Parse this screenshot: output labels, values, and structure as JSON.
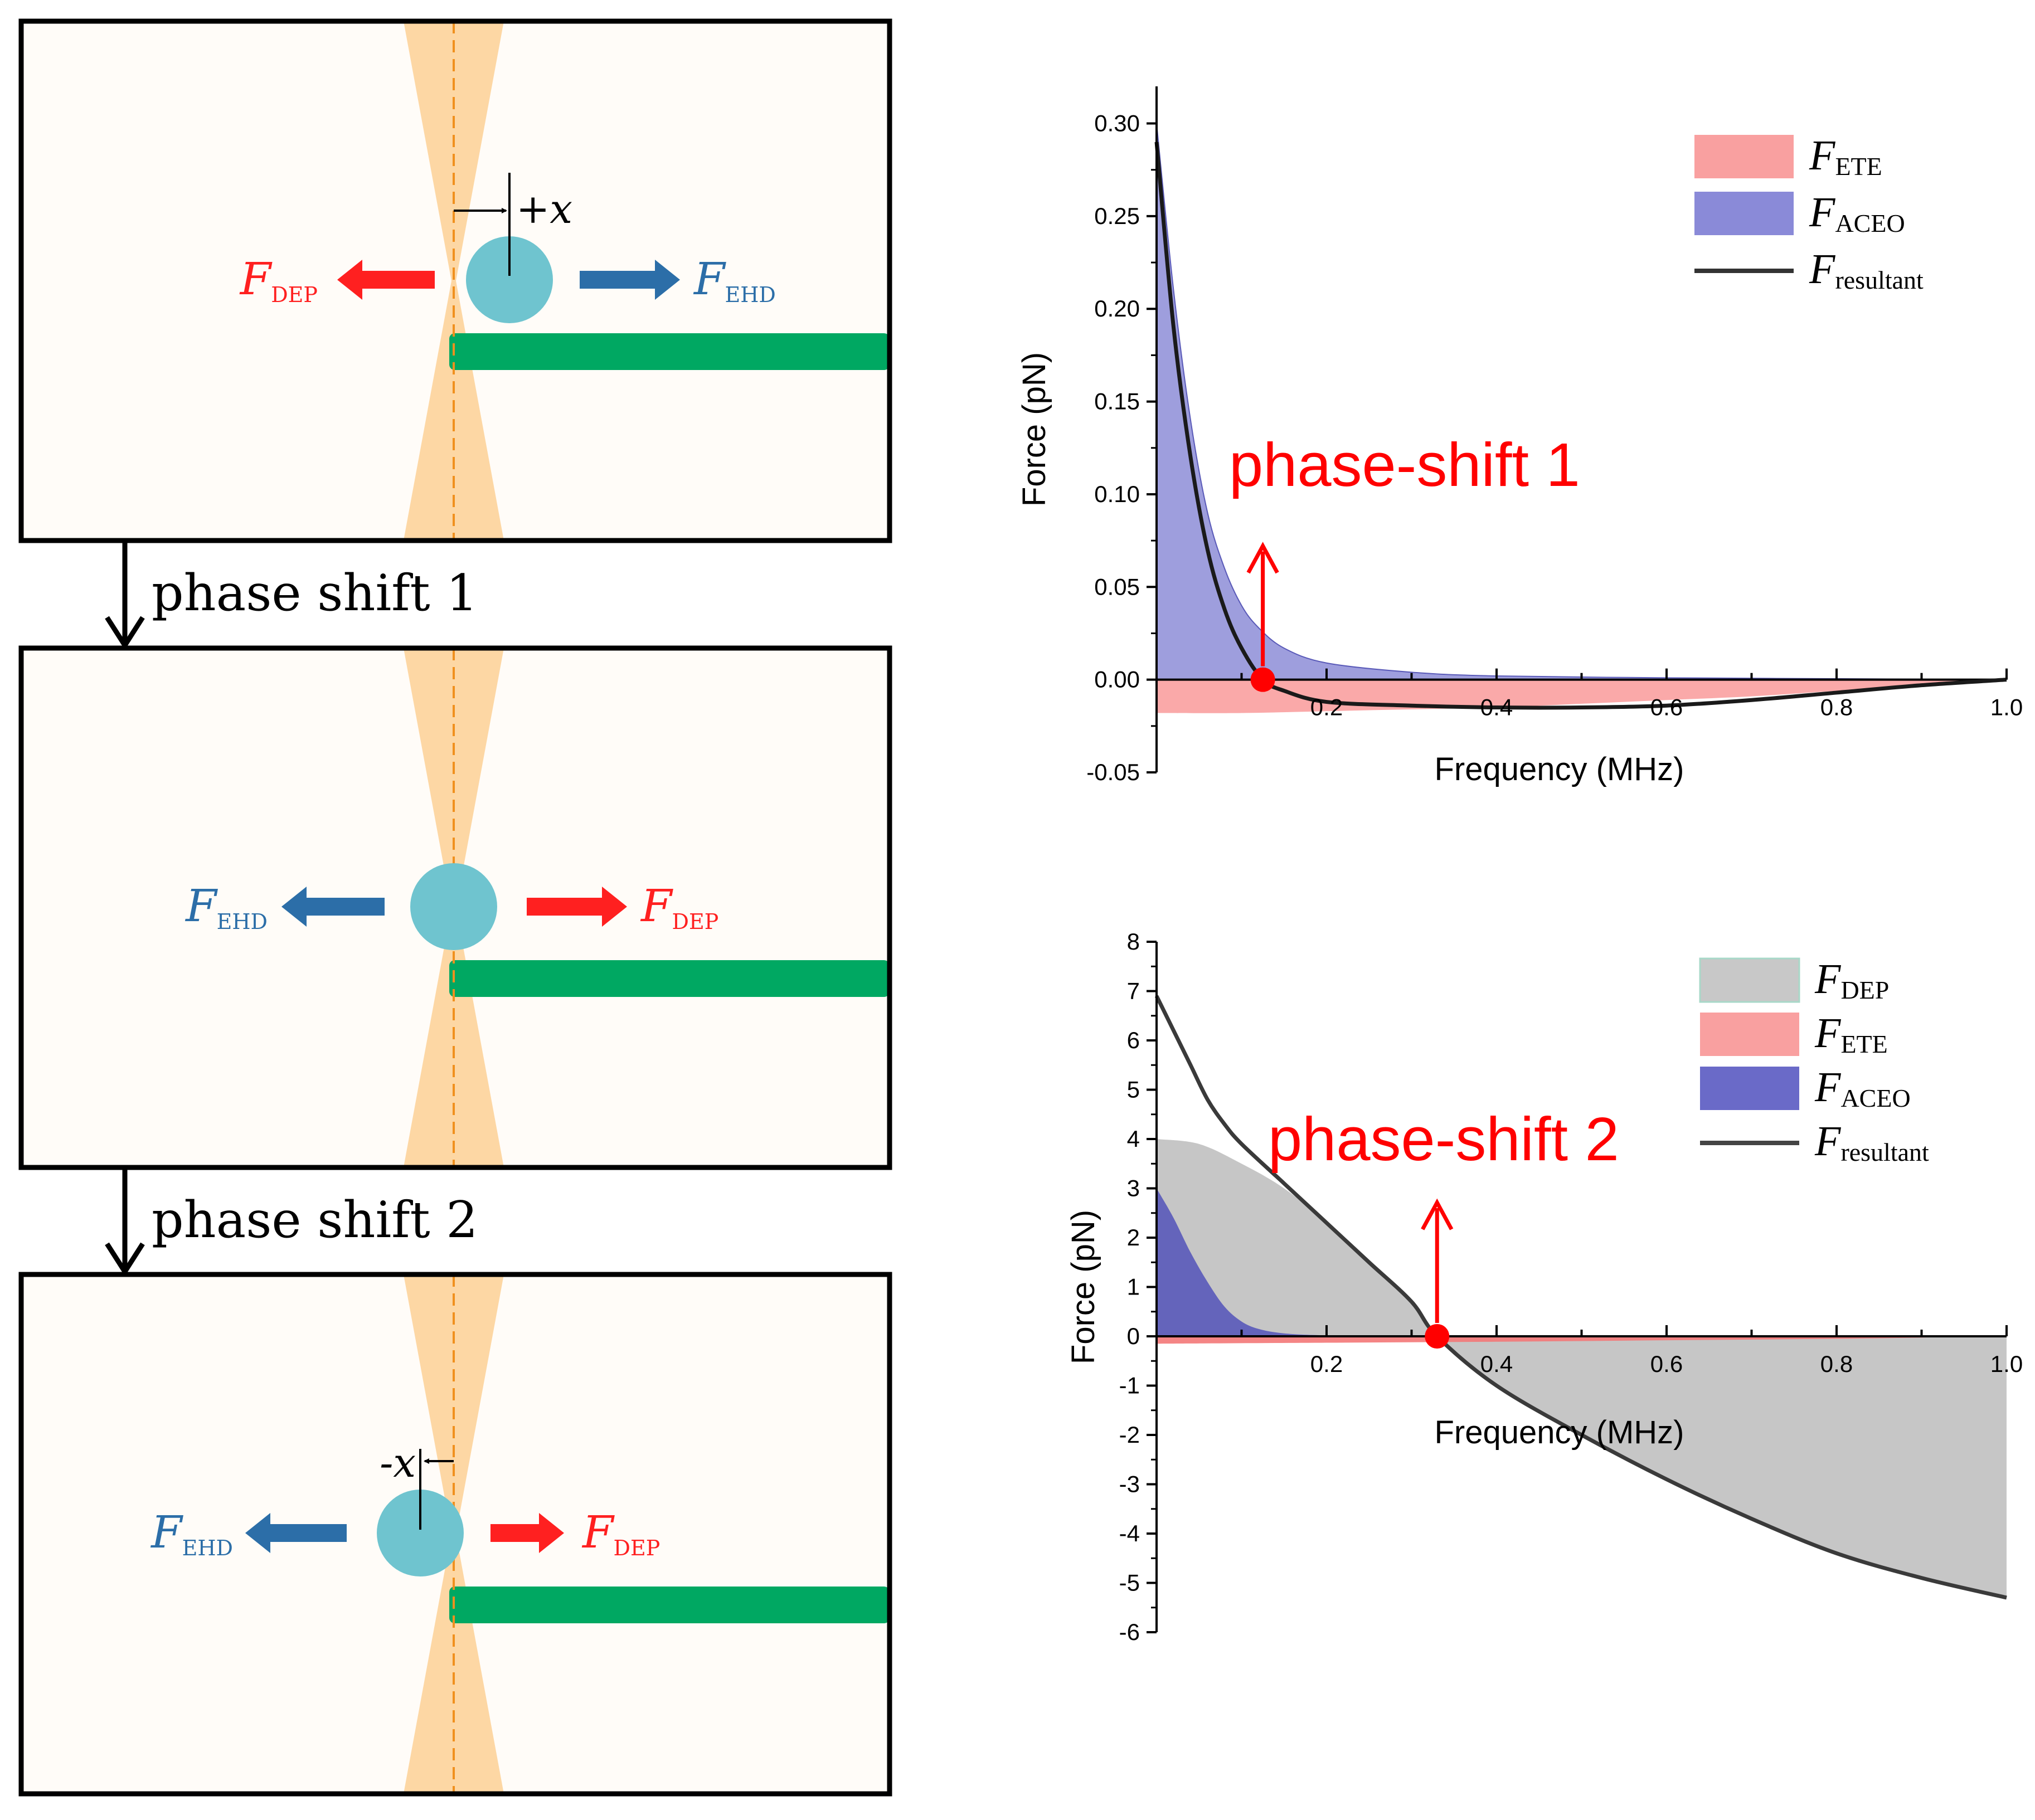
{
  "diagram": {
    "step_labels": [
      "phase shift 1",
      "phase shift 2"
    ],
    "panels": [
      {
        "left_force": {
          "name": "F",
          "sub": "DEP",
          "color": "#ff2020"
        },
        "right_force": {
          "name": "F",
          "sub": "EHD",
          "color": "#2c6ea8"
        },
        "displacement": "+x"
      },
      {
        "left_force": {
          "name": "F",
          "sub": "EHD",
          "color": "#2c6ea8"
        },
        "right_force": {
          "name": "F",
          "sub": "DEP",
          "color": "#ff2020"
        },
        "displacement": ""
      },
      {
        "left_force": {
          "name": "F",
          "sub": "EHD",
          "color": "#2c6ea8"
        },
        "right_force": {
          "name": "F",
          "sub": "DEP",
          "color": "#ff2020"
        },
        "displacement": "-x"
      }
    ],
    "colors": {
      "beam": "#fdd7a4",
      "particle": "#6fc4cf",
      "electrode": "#00a862",
      "dash": "#f0901e",
      "panel_bg": "#fffcf8"
    }
  },
  "chart_data": [
    {
      "type": "area",
      "x_label": "Frequency (MHz)",
      "y_label": "Force (pN)",
      "xlim": [
        0.0,
        1.0
      ],
      "ylim": [
        -0.05,
        0.32
      ],
      "x_ticks": [
        "0.2",
        "0.4",
        "0.6",
        "0.8",
        "1.0"
      ],
      "y_ticks": [
        "0.30",
        "0.25",
        "0.20",
        "0.15",
        "0.10",
        "0.05",
        "0.00",
        "-0.05"
      ],
      "annotation": {
        "text": "phase-shift 1",
        "x": 0.125,
        "y": 0.0
      },
      "legend": [
        {
          "name": "F",
          "sub": "ETE",
          "kind": "fill",
          "color": "#f9a0a0"
        },
        {
          "name": "F",
          "sub": "ACEO",
          "kind": "fill",
          "color": "#8a8ad8"
        },
        {
          "name": "F",
          "sub": "resultant",
          "kind": "line",
          "color": "#333333"
        }
      ],
      "series": [
        {
          "name": "F_ETE",
          "x": [
            0.0,
            0.1,
            0.2,
            0.3,
            0.4,
            0.5,
            0.6,
            0.7,
            0.8,
            0.9,
            1.0
          ],
          "y": [
            -0.018,
            -0.018,
            -0.017,
            -0.016,
            -0.015,
            -0.013,
            -0.011,
            -0.009,
            -0.006,
            -0.003,
            0.0
          ]
        },
        {
          "name": "F_ACEO",
          "x": [
            0.0,
            0.02,
            0.04,
            0.06,
            0.08,
            0.1,
            0.12,
            0.15,
            0.2,
            0.3,
            0.4,
            0.6,
            0.8,
            1.0
          ],
          "y": [
            0.3,
            0.21,
            0.14,
            0.09,
            0.06,
            0.04,
            0.028,
            0.017,
            0.009,
            0.004,
            0.002,
            0.001,
            0.0005,
            0.0
          ]
        },
        {
          "name": "F_resultant",
          "x": [
            0.0,
            0.02,
            0.04,
            0.06,
            0.08,
            0.1,
            0.125,
            0.15,
            0.2,
            0.3,
            0.4,
            0.5,
            0.6,
            0.7,
            0.8,
            0.9,
            1.0
          ],
          "y": [
            0.29,
            0.19,
            0.12,
            0.07,
            0.038,
            0.017,
            0.0,
            -0.006,
            -0.012,
            -0.014,
            -0.015,
            -0.015,
            -0.014,
            -0.011,
            -0.007,
            -0.003,
            0.0
          ]
        }
      ]
    },
    {
      "type": "area",
      "x_label": "Frequency (MHz)",
      "y_label": "Force (pN)",
      "xlim": [
        0.0,
        1.0
      ],
      "ylim": [
        -6,
        8
      ],
      "x_ticks": [
        "0.2",
        "0.4",
        "0.6",
        "0.8",
        "1.0"
      ],
      "y_ticks": [
        "8",
        "7",
        "6",
        "5",
        "4",
        "3",
        "2",
        "1",
        "0",
        "-1",
        "-2",
        "-3",
        "-4",
        "-5",
        "-6"
      ],
      "annotation": {
        "text": "phase-shift 2",
        "x": 0.33,
        "y": 0.0
      },
      "legend": [
        {
          "name": "F",
          "sub": "DEP",
          "kind": "fill",
          "color": "#c8c8c8"
        },
        {
          "name": "F",
          "sub": "ETE",
          "kind": "fill",
          "color": "#f9a0a0"
        },
        {
          "name": "F",
          "sub": "ACEO",
          "kind": "fill",
          "color": "#6a6ac8"
        },
        {
          "name": "F",
          "sub": "resultant",
          "kind": "line",
          "color": "#444444"
        }
      ],
      "series": [
        {
          "name": "F_DEP",
          "x": [
            0.0,
            0.05,
            0.1,
            0.15,
            0.2,
            0.25,
            0.3,
            0.33,
            0.4,
            0.5,
            0.6,
            0.7,
            0.8,
            0.9,
            1.0
          ],
          "y": [
            4.0,
            3.9,
            3.5,
            3.0,
            2.3,
            1.5,
            0.7,
            0.0,
            -1.0,
            -2.0,
            -2.9,
            -3.7,
            -4.4,
            -4.9,
            -5.3
          ]
        },
        {
          "name": "F_ETE",
          "x": [
            0.0,
            0.2,
            0.4,
            0.6,
            0.8,
            1.0
          ],
          "y": [
            -0.15,
            -0.13,
            -0.11,
            -0.08,
            -0.05,
            0.0
          ]
        },
        {
          "name": "F_ACEO",
          "x": [
            0.0,
            0.02,
            0.04,
            0.06,
            0.08,
            0.1,
            0.12,
            0.15,
            0.2,
            0.3
          ],
          "y": [
            3.0,
            2.4,
            1.7,
            1.1,
            0.6,
            0.3,
            0.15,
            0.06,
            0.02,
            0.0
          ]
        },
        {
          "name": "F_resultant",
          "x": [
            0.0,
            0.02,
            0.04,
            0.06,
            0.08,
            0.1,
            0.15,
            0.2,
            0.25,
            0.3,
            0.33,
            0.4,
            0.5,
            0.6,
            0.7,
            0.8,
            0.9,
            1.0
          ],
          "y": [
            6.9,
            6.2,
            5.5,
            4.8,
            4.3,
            3.9,
            3.1,
            2.3,
            1.5,
            0.7,
            0.0,
            -1.0,
            -2.0,
            -2.9,
            -3.7,
            -4.4,
            -4.9,
            -5.3
          ]
        }
      ]
    }
  ]
}
